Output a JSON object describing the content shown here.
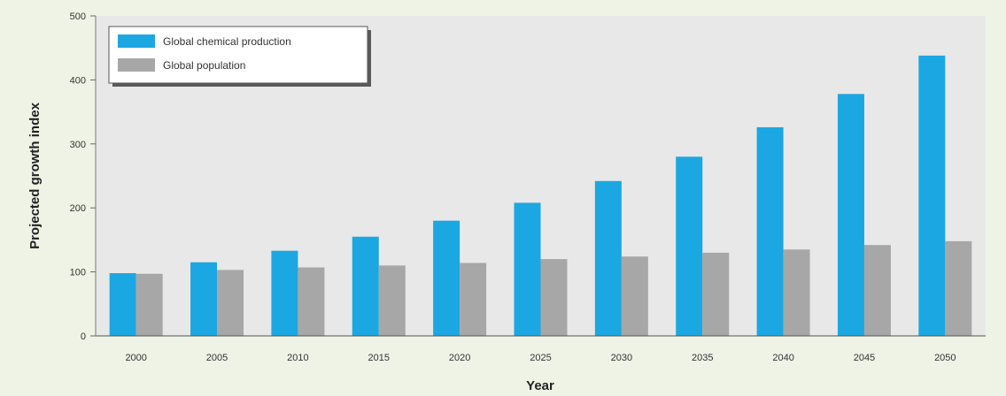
{
  "chart_data": {
    "type": "bar",
    "title": "",
    "xlabel": "Year",
    "ylabel": "Projected growth index",
    "categories": [
      "2000",
      "2005",
      "2010",
      "2015",
      "2020",
      "2025",
      "2030",
      "2035",
      "2040",
      "2045",
      "2050"
    ],
    "series": [
      {
        "name": "Global chemical production",
        "color": "#1ba7e1",
        "values": [
          98,
          115,
          133,
          155,
          180,
          208,
          242,
          280,
          326,
          378,
          438
        ]
      },
      {
        "name": "Global population",
        "color": "#a7a7a7",
        "values": [
          97,
          103,
          107,
          110,
          114,
          120,
          124,
          130,
          135,
          142,
          148
        ]
      }
    ],
    "ylim": [
      0,
      500
    ],
    "yticks": [
      0,
      100,
      200,
      300,
      400,
      500
    ],
    "grid": false,
    "legend_position": "top-left",
    "plot_background": "#e8e8e8",
    "page_background": "#eef3e6"
  }
}
